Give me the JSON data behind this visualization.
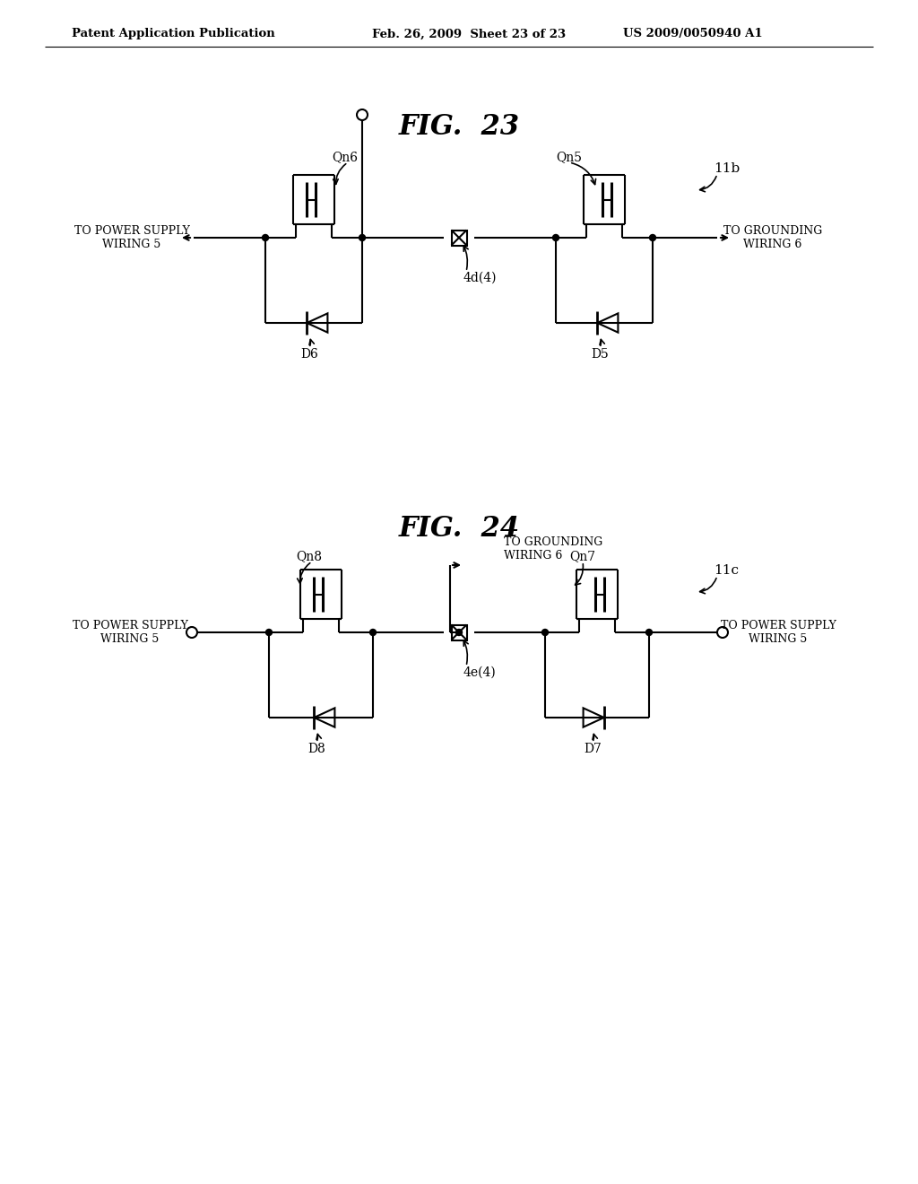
{
  "header_left": "Patent Application Publication",
  "header_mid": "Feb. 26, 2009  Sheet 23 of 23",
  "header_right": "US 2009/0050940 A1",
  "fig23_title": "FIG.  23",
  "fig24_title": "FIG.  24",
  "fig23_label": "11b",
  "fig24_label": "11c",
  "fig23_left_text": "TO POWER SUPPLY\nWIRING 5",
  "fig23_right_text": "TO GROUNDING\nWIRING 6",
  "fig24_left_text": "TO POWER SUPPLY\nWIRING 5",
  "fig24_right_text": "TO POWER SUPPLY\nWIRING 5",
  "fig24_top_text": "TO GROUNDING\nWIRING 6",
  "fig23_lamp_label": "4d(4)",
  "fig24_lamp_label": "4e(4)",
  "fig23_qn6": "Qn6",
  "fig23_qn5": "Qn5",
  "fig24_qn8": "Qn8",
  "fig24_qn7": "Qn7",
  "fig23_D6": "D6",
  "fig23_D5": "D5",
  "fig24_D8": "D8",
  "fig24_D7": "D7",
  "lw": 1.5
}
